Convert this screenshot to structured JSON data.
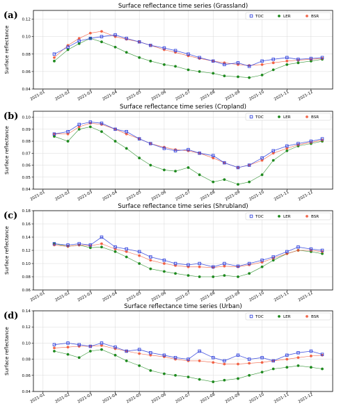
{
  "figure": {
    "legend_labels": [
      "TOC",
      "LER",
      "BSR"
    ],
    "colors": {
      "TOC": "#3344dd",
      "LER": "#1f8a1f",
      "BSR": "#f05030"
    }
  },
  "chart_data": [
    {
      "type": "line",
      "panel_label": "(a)",
      "title": "Surface reflectance time series (Grassland)",
      "ylabel": "Surface reflectance",
      "xlabel": "",
      "x_ticks": [
        "2021-01",
        "2021-02",
        "2021-03",
        "2021-04",
        "2021-05",
        "2021-06",
        "2021-07",
        "2021-08",
        "2021-09",
        "2021-10",
        "2021-11",
        "2021-12"
      ],
      "y_ticks": [
        "0.04",
        "0.06",
        "0.08",
        "0.10",
        "0.12"
      ],
      "ylim": [
        0.04,
        0.13
      ],
      "grid": true,
      "legend_position": "top-right",
      "x": [
        "2021-01-15",
        "2021-02-01",
        "2021-02-15",
        "2021-03-01",
        "2021-03-15",
        "2021-04-01",
        "2021-04-15",
        "2021-05-01",
        "2021-05-15",
        "2021-06-01",
        "2021-06-15",
        "2021-07-01",
        "2021-07-15",
        "2021-08-01",
        "2021-08-15",
        "2021-09-01",
        "2021-09-15",
        "2021-10-01",
        "2021-10-15",
        "2021-11-01",
        "2021-11-15",
        "2021-12-01",
        "2021-12-15"
      ],
      "series": [
        {
          "name": "TOC",
          "values": [
            0.08,
            0.088,
            0.095,
            0.098,
            0.1,
            0.102,
            0.098,
            0.094,
            0.09,
            0.087,
            0.084,
            0.08,
            0.076,
            0.072,
            0.068,
            0.07,
            0.066,
            0.072,
            0.074,
            0.076,
            0.074,
            0.075,
            0.076
          ]
        },
        {
          "name": "LER",
          "values": [
            0.072,
            0.085,
            0.092,
            0.098,
            0.094,
            0.088,
            0.082,
            0.076,
            0.072,
            0.068,
            0.066,
            0.062,
            0.06,
            0.058,
            0.055,
            0.054,
            0.053,
            0.056,
            0.062,
            0.068,
            0.07,
            0.072,
            0.074
          ]
        },
        {
          "name": "BSR",
          "values": [
            0.076,
            0.09,
            0.098,
            0.104,
            0.106,
            0.1,
            0.097,
            0.094,
            0.09,
            0.085,
            0.082,
            0.078,
            0.075,
            0.072,
            0.07,
            0.068,
            0.067,
            0.068,
            0.07,
            0.072,
            0.073,
            0.074,
            0.075
          ]
        }
      ]
    },
    {
      "type": "line",
      "panel_label": "(b)",
      "title": "Surface reflectance time series (Cropland)",
      "ylabel": "Surface reflectance",
      "xlabel": "",
      "x_ticks": [
        "2021-01",
        "2021-02",
        "2021-03",
        "2021-04",
        "2021-05",
        "2021-06",
        "2021-07",
        "2021-08",
        "2021-09",
        "2021-10",
        "2021-11",
        "2021-12"
      ],
      "y_ticks": [
        "0.04",
        "0.05",
        "0.06",
        "0.07",
        "0.08",
        "0.09",
        "0.10"
      ],
      "ylim": [
        0.04,
        0.105
      ],
      "grid": true,
      "legend_position": "top-right",
      "x": [
        "2021-01-15",
        "2021-02-01",
        "2021-02-15",
        "2021-03-01",
        "2021-03-15",
        "2021-04-01",
        "2021-04-15",
        "2021-05-01",
        "2021-05-15",
        "2021-06-01",
        "2021-06-15",
        "2021-07-01",
        "2021-07-15",
        "2021-08-01",
        "2021-08-15",
        "2021-09-01",
        "2021-09-15",
        "2021-10-01",
        "2021-10-15",
        "2021-11-01",
        "2021-11-15",
        "2021-12-01",
        "2021-12-15"
      ],
      "series": [
        {
          "name": "TOC",
          "values": [
            0.086,
            0.088,
            0.094,
            0.096,
            0.095,
            0.09,
            0.088,
            0.082,
            0.078,
            0.074,
            0.072,
            0.073,
            0.07,
            0.068,
            0.062,
            0.058,
            0.06,
            0.066,
            0.072,
            0.076,
            0.078,
            0.08,
            0.082
          ]
        },
        {
          "name": "LER",
          "values": [
            0.084,
            0.08,
            0.09,
            0.092,
            0.088,
            0.08,
            0.074,
            0.066,
            0.06,
            0.056,
            0.055,
            0.058,
            0.052,
            0.046,
            0.048,
            0.044,
            0.046,
            0.052,
            0.064,
            0.072,
            0.076,
            0.078,
            0.08
          ]
        },
        {
          "name": "BSR",
          "values": [
            0.086,
            0.086,
            0.092,
            0.095,
            0.094,
            0.09,
            0.086,
            0.082,
            0.078,
            0.075,
            0.073,
            0.072,
            0.07,
            0.066,
            0.062,
            0.058,
            0.06,
            0.064,
            0.07,
            0.074,
            0.077,
            0.079,
            0.081
          ]
        }
      ]
    },
    {
      "type": "line",
      "panel_label": "(c)",
      "title": "Surface reflectance time series (Shrubland)",
      "ylabel": "Surface reflectance",
      "xlabel": "",
      "x_ticks": [
        "2021-01",
        "2021-02",
        "2021-03",
        "2021-04",
        "2021-05",
        "2021-06",
        "2021-07",
        "2021-08",
        "2021-09",
        "2021-10",
        "2021-11",
        "2021-12"
      ],
      "y_ticks": [
        "0.06",
        "0.08",
        "0.10",
        "0.12",
        "0.14",
        "0.16",
        "0.18"
      ],
      "ylim": [
        0.06,
        0.18
      ],
      "grid": true,
      "legend_position": "top-right",
      "x": [
        "2021-01-15",
        "2021-02-01",
        "2021-02-15",
        "2021-03-01",
        "2021-03-15",
        "2021-04-01",
        "2021-04-15",
        "2021-05-01",
        "2021-05-15",
        "2021-06-01",
        "2021-06-15",
        "2021-07-01",
        "2021-07-15",
        "2021-08-01",
        "2021-08-15",
        "2021-09-01",
        "2021-09-15",
        "2021-10-01",
        "2021-10-15",
        "2021-11-01",
        "2021-11-15",
        "2021-12-01",
        "2021-12-15"
      ],
      "series": [
        {
          "name": "TOC",
          "values": [
            0.13,
            0.128,
            0.13,
            0.128,
            0.14,
            0.125,
            0.122,
            0.118,
            0.11,
            0.105,
            0.1,
            0.098,
            0.1,
            0.095,
            0.1,
            0.096,
            0.1,
            0.105,
            0.11,
            0.118,
            0.125,
            0.122,
            0.12
          ]
        },
        {
          "name": "LER",
          "values": [
            0.13,
            0.126,
            0.128,
            0.124,
            0.125,
            0.118,
            0.11,
            0.1,
            0.092,
            0.088,
            0.085,
            0.082,
            0.08,
            0.08,
            0.082,
            0.08,
            0.085,
            0.095,
            0.105,
            0.115,
            0.12,
            0.118,
            0.115
          ]
        },
        {
          "name": "BSR",
          "values": [
            0.128,
            0.126,
            0.128,
            0.127,
            0.13,
            0.122,
            0.118,
            0.112,
            0.105,
            0.1,
            0.097,
            0.095,
            0.095,
            0.094,
            0.096,
            0.095,
            0.098,
            0.102,
            0.108,
            0.115,
            0.12,
            0.12,
            0.118
          ]
        }
      ]
    },
    {
      "type": "line",
      "panel_label": "(d)",
      "title": "Surface reflectance time series (Urban)",
      "ylabel": "Surface reflectance",
      "xlabel": "",
      "x_ticks": [
        "2021-01",
        "2021-02",
        "2021-03",
        "2021-04",
        "2021-05",
        "2021-06",
        "2021-07",
        "2021-08",
        "2021-09",
        "2021-10",
        "2021-11",
        "2021-12"
      ],
      "y_ticks": [
        "0.04",
        "0.06",
        "0.08",
        "0.10",
        "0.12",
        "0.14"
      ],
      "ylim": [
        0.04,
        0.14
      ],
      "grid": true,
      "legend_position": "top-right",
      "x": [
        "2021-01-15",
        "2021-02-01",
        "2021-02-15",
        "2021-03-01",
        "2021-03-15",
        "2021-04-01",
        "2021-04-15",
        "2021-05-01",
        "2021-05-15",
        "2021-06-01",
        "2021-06-15",
        "2021-07-01",
        "2021-07-15",
        "2021-08-01",
        "2021-08-15",
        "2021-09-01",
        "2021-09-15",
        "2021-10-01",
        "2021-10-15",
        "2021-11-01",
        "2021-11-15",
        "2021-12-01",
        "2021-12-15"
      ],
      "series": [
        {
          "name": "TOC",
          "values": [
            0.098,
            0.1,
            0.098,
            0.096,
            0.1,
            0.095,
            0.09,
            0.092,
            0.088,
            0.085,
            0.082,
            0.08,
            0.09,
            0.082,
            0.078,
            0.085,
            0.08,
            0.082,
            0.078,
            0.085,
            0.088,
            0.09,
            0.086
          ]
        },
        {
          "name": "LER",
          "values": [
            0.09,
            0.086,
            0.082,
            0.09,
            0.092,
            0.085,
            0.078,
            0.072,
            0.066,
            0.062,
            0.06,
            0.058,
            0.055,
            0.052,
            0.054,
            0.056,
            0.06,
            0.064,
            0.068,
            0.07,
            0.072,
            0.07,
            0.068
          ]
        },
        {
          "name": "BSR",
          "values": [
            0.094,
            0.095,
            0.096,
            0.096,
            0.097,
            0.093,
            0.09,
            0.087,
            0.085,
            0.083,
            0.08,
            0.078,
            0.078,
            0.076,
            0.074,
            0.074,
            0.075,
            0.076,
            0.078,
            0.08,
            0.082,
            0.084,
            0.085
          ]
        }
      ]
    }
  ]
}
